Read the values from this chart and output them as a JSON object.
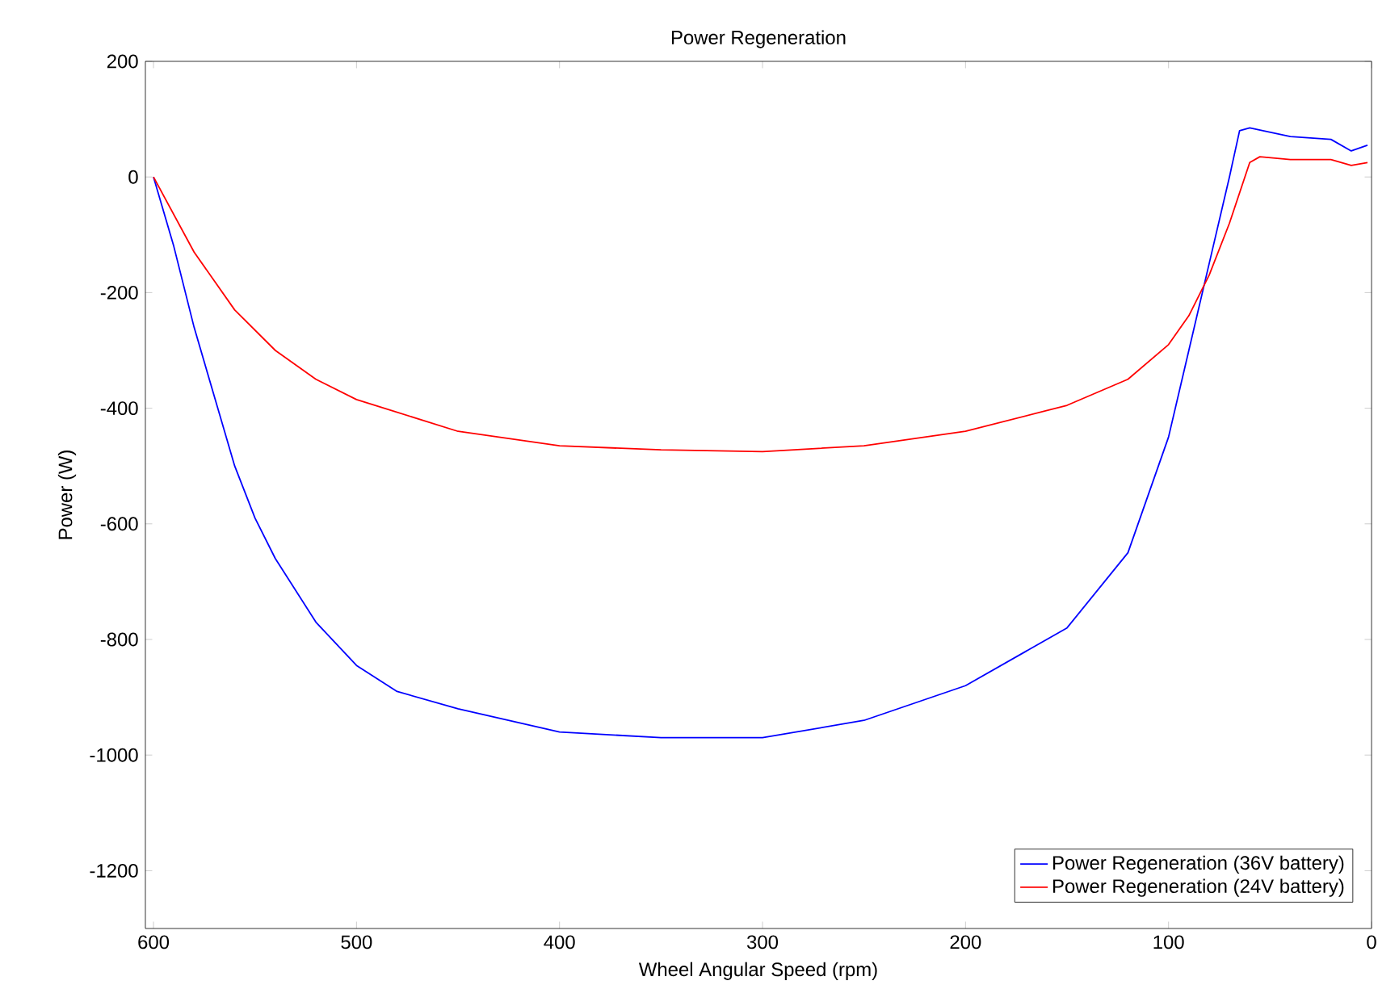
{
  "chart_data": {
    "type": "line",
    "title": "Power Regeneration",
    "xlabel": "Wheel Angular Speed (rpm)",
    "ylabel": "Power (W)",
    "xlim": [
      604,
      0
    ],
    "ylim": [
      -1300,
      200
    ],
    "xticks": [
      600,
      500,
      400,
      300,
      200,
      100,
      0
    ],
    "yticks": [
      -1200,
      -1000,
      -800,
      -600,
      -400,
      -200,
      0,
      200
    ],
    "grid": false,
    "legend": "bottom right",
    "line_style": "solid",
    "marker": "none",
    "series": [
      {
        "name": "Power Regeneration (36V battery)",
        "color": "#0000ff",
        "x": [
          600,
          590,
          580,
          570,
          560,
          550,
          540,
          520,
          500,
          480,
          450,
          400,
          350,
          300,
          250,
          200,
          150,
          120,
          100,
          90,
          80,
          70,
          65,
          60,
          40,
          20,
          10,
          2
        ],
        "values": [
          0,
          -120,
          -260,
          -380,
          -500,
          -590,
          -660,
          -770,
          -845,
          -890,
          -920,
          -960,
          -970,
          -970,
          -940,
          -880,
          -780,
          -650,
          -450,
          -300,
          -150,
          0,
          80,
          85,
          70,
          65,
          45,
          55
        ]
      },
      {
        "name": "Power Regeneration (24V battery)",
        "color": "#ff0000",
        "x": [
          600,
          580,
          560,
          540,
          520,
          500,
          450,
          400,
          350,
          300,
          250,
          200,
          150,
          120,
          100,
          90,
          80,
          70,
          60,
          55,
          40,
          20,
          10,
          2
        ],
        "values": [
          0,
          -130,
          -230,
          -300,
          -350,
          -385,
          -440,
          -465,
          -472,
          -475,
          -465,
          -440,
          -395,
          -350,
          -290,
          -240,
          -170,
          -80,
          25,
          35,
          30,
          30,
          20,
          25
        ]
      }
    ]
  }
}
